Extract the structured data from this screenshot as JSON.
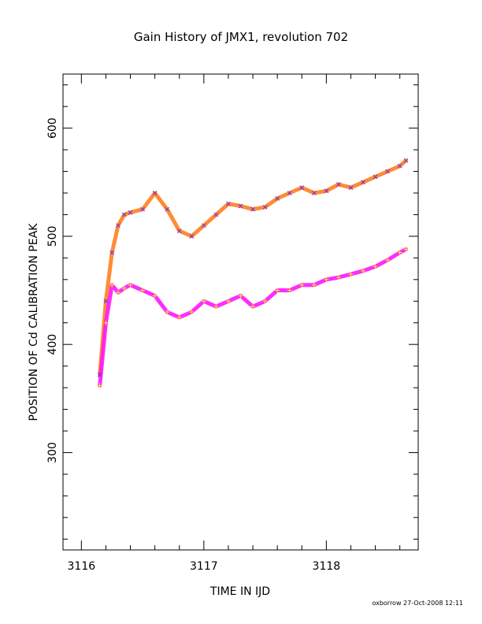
{
  "chart_data": {
    "type": "scatter",
    "title": "Gain History of JMX1, revolution 702",
    "xlabel": "TIME IN IJD",
    "ylabel": "POSITION OF Cd CALIBRATION PEAK",
    "xlim": [
      3115.85,
      3118.75
    ],
    "ylim": [
      210,
      650
    ],
    "xticks": [
      3116,
      3117,
      3118
    ],
    "xtick_labels": [
      "3116",
      "3117",
      "3118"
    ],
    "yticks": [
      300,
      400,
      500,
      600
    ],
    "ytick_labels": [
      "300",
      "400",
      "500",
      "600"
    ],
    "grid": false,
    "series": [
      {
        "marker": "x",
        "color": "#7b2be2",
        "fit_color": "#ff7f1e",
        "x": [
          3116.15,
          3116.2,
          3116.25,
          3116.3,
          3116.35,
          3116.4,
          3116.5,
          3116.6,
          3116.7,
          3116.8,
          3116.9,
          3117.0,
          3117.1,
          3117.2,
          3117.3,
          3117.4,
          3117.5,
          3117.6,
          3117.7,
          3117.8,
          3117.9,
          3118.0,
          3118.1,
          3118.2,
          3118.3,
          3118.4,
          3118.5,
          3118.6,
          3118.65
        ],
        "y": [
          372,
          440,
          485,
          510,
          520,
          522,
          525,
          540,
          525,
          505,
          500,
          510,
          520,
          530,
          528,
          525,
          527,
          535,
          540,
          545,
          540,
          542,
          548,
          545,
          550,
          555,
          560,
          565,
          570
        ]
      },
      {
        "marker": "+",
        "color": "#f5f500",
        "fit_color": "#ff14ff",
        "x": [
          3116.15,
          3116.2,
          3116.25,
          3116.3,
          3116.35,
          3116.4,
          3116.5,
          3116.6,
          3116.7,
          3116.8,
          3116.9,
          3117.0,
          3117.1,
          3117.2,
          3117.3,
          3117.4,
          3117.5,
          3117.6,
          3117.7,
          3117.8,
          3117.9,
          3118.0,
          3118.1,
          3118.2,
          3118.3,
          3118.4,
          3118.5,
          3118.6,
          3118.65
        ],
        "y": [
          362,
          420,
          455,
          448,
          452,
          455,
          450,
          445,
          430,
          425,
          430,
          440,
          435,
          440,
          445,
          435,
          440,
          450,
          450,
          455,
          455,
          460,
          462,
          465,
          468,
          472,
          478,
          485,
          488
        ]
      }
    ]
  },
  "footer": "oxborrow 27-Oct-2008 12:11"
}
